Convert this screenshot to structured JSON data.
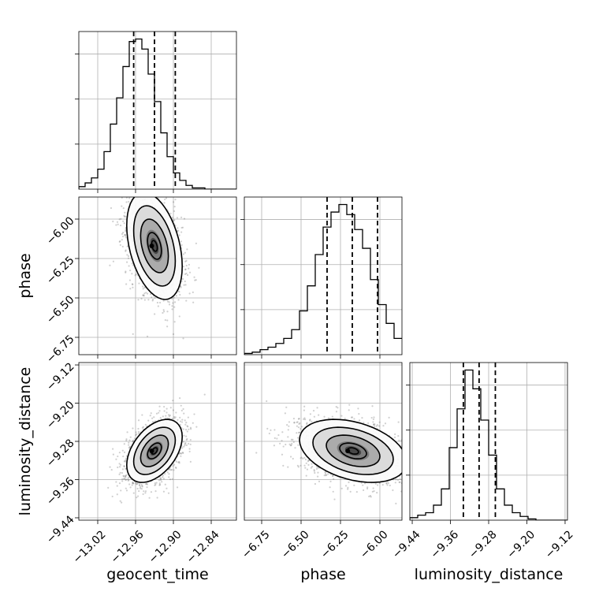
{
  "chart_data": {
    "type": "corner",
    "parameters": [
      "geocent_time",
      "phase",
      "luminosity_distance"
    ],
    "axes": {
      "geocent_time": {
        "label": "geocent_time",
        "range": [
          -13.05,
          -12.8
        ],
        "ticks": [
          -13.02,
          -12.96,
          -12.9,
          -12.84
        ],
        "tick_labels": [
          "−13.02",
          "−12.96",
          "−12.90",
          "−12.84"
        ]
      },
      "phase": {
        "label": "phase",
        "range": [
          -6.86,
          -5.86
        ],
        "ticks": [
          -6.75,
          -6.5,
          -6.25,
          -6.0
        ],
        "tick_labels": [
          "−6.75",
          "−6.50",
          "−6.25",
          "−6.00"
        ]
      },
      "luminosity_distance": {
        "label": "luminosity_distance",
        "range": [
          -9.445,
          -9.115
        ],
        "ticks": [
          -9.44,
          -9.36,
          -9.28,
          -9.2,
          -9.12
        ],
        "tick_labels": [
          "−9.44",
          "−9.36",
          "−9.28",
          "−9.20",
          "−9.12"
        ]
      }
    },
    "quantiles": {
      "geocent_time": [
        -12.963,
        -12.93,
        -12.897
      ],
      "phase": [
        -6.335,
        -6.175,
        -6.015
      ],
      "luminosity_distance": [
        -9.333,
        -9.3,
        -9.266
      ]
    },
    "histograms": {
      "geocent_time": {
        "x_start": -13.05,
        "bin_width": 0.01,
        "counts": [
          2,
          5,
          9,
          16,
          30,
          52,
          73,
          98,
          118,
          120,
          112,
          92,
          70,
          45,
          26,
          13,
          7,
          3,
          1,
          1,
          0,
          0,
          0,
          0,
          0
        ]
      },
      "phase": {
        "x_start": -6.86,
        "bin_width": 0.05,
        "counts": [
          1,
          2,
          4,
          6,
          9,
          13,
          20,
          35,
          55,
          80,
          102,
          114,
          120,
          112,
          100,
          85,
          60,
          40,
          25,
          13
        ]
      },
      "luminosity_distance": {
        "x_start": -9.445,
        "bin_width": 0.0165,
        "counts": [
          2,
          4,
          6,
          12,
          25,
          58,
          89,
          120,
          105,
          80,
          52,
          25,
          12,
          6,
          3,
          1,
          0,
          0,
          0,
          0
        ]
      }
    },
    "density_2d": [
      {
        "x": "geocent_time",
        "y": "phase",
        "center": [
          -12.93,
          -6.17
        ],
        "sd": [
          0.022,
          0.17
        ],
        "rho": -0.38
      },
      {
        "x": "geocent_time",
        "y": "luminosity_distance",
        "center": [
          -12.93,
          -9.3
        ],
        "sd": [
          0.022,
          0.033
        ],
        "rho": 0.45
      },
      {
        "x": "phase",
        "y": "luminosity_distance",
        "center": [
          -6.17,
          -9.3
        ],
        "sd": [
          0.17,
          0.033
        ],
        "rho": -0.35
      }
    ],
    "grid": true
  }
}
